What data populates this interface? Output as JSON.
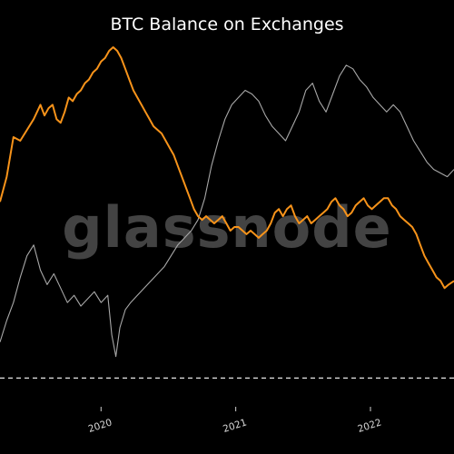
{
  "chart_data": {
    "type": "line",
    "title": "BTC Balance on Exchanges",
    "watermark": "glassnode",
    "xlabel": "",
    "ylabel": "",
    "x_ticks": [
      "2020",
      "2021",
      "2022"
    ],
    "x_range": [
      2019.25,
      2022.62
    ],
    "y_range": [
      0,
      100
    ],
    "grid": false,
    "legend": "none",
    "reference_line": {
      "value": 8,
      "style": "dashed",
      "color": "#ffffff"
    },
    "series": [
      {
        "color": "#f7931a",
        "points": [
          [
            2019.25,
            57
          ],
          [
            2019.3,
            64
          ],
          [
            2019.35,
            75
          ],
          [
            2019.4,
            74
          ],
          [
            2019.45,
            77
          ],
          [
            2019.5,
            80
          ],
          [
            2019.55,
            84
          ],
          [
            2019.58,
            81
          ],
          [
            2019.61,
            83
          ],
          [
            2019.64,
            84
          ],
          [
            2019.67,
            80
          ],
          [
            2019.7,
            79
          ],
          [
            2019.73,
            82
          ],
          [
            2019.76,
            86
          ],
          [
            2019.79,
            85
          ],
          [
            2019.82,
            87
          ],
          [
            2019.85,
            88
          ],
          [
            2019.88,
            90
          ],
          [
            2019.91,
            91
          ],
          [
            2019.94,
            93
          ],
          [
            2019.97,
            94
          ],
          [
            2020.0,
            96
          ],
          [
            2020.03,
            97
          ],
          [
            2020.06,
            99
          ],
          [
            2020.09,
            100
          ],
          [
            2020.12,
            99
          ],
          [
            2020.15,
            97
          ],
          [
            2020.18,
            94
          ],
          [
            2020.21,
            91
          ],
          [
            2020.24,
            88
          ],
          [
            2020.27,
            86
          ],
          [
            2020.3,
            84
          ],
          [
            2020.33,
            82
          ],
          [
            2020.36,
            80
          ],
          [
            2020.39,
            78
          ],
          [
            2020.42,
            77
          ],
          [
            2020.45,
            76
          ],
          [
            2020.48,
            74
          ],
          [
            2020.51,
            72
          ],
          [
            2020.54,
            70
          ],
          [
            2020.57,
            67
          ],
          [
            2020.6,
            64
          ],
          [
            2020.63,
            61
          ],
          [
            2020.66,
            58
          ],
          [
            2020.69,
            55
          ],
          [
            2020.72,
            53
          ],
          [
            2020.75,
            52
          ],
          [
            2020.78,
            53
          ],
          [
            2020.81,
            52
          ],
          [
            2020.84,
            51
          ],
          [
            2020.87,
            52
          ],
          [
            2020.9,
            53
          ],
          [
            2020.93,
            51
          ],
          [
            2020.96,
            49
          ],
          [
            2020.99,
            50
          ],
          [
            2021.02,
            50
          ],
          [
            2021.05,
            49
          ],
          [
            2021.08,
            48
          ],
          [
            2021.11,
            49
          ],
          [
            2021.14,
            48
          ],
          [
            2021.17,
            47
          ],
          [
            2021.2,
            48
          ],
          [
            2021.23,
            49
          ],
          [
            2021.26,
            51
          ],
          [
            2021.29,
            54
          ],
          [
            2021.32,
            55
          ],
          [
            2021.35,
            53
          ],
          [
            2021.38,
            55
          ],
          [
            2021.41,
            56
          ],
          [
            2021.44,
            53
          ],
          [
            2021.47,
            51
          ],
          [
            2021.5,
            52
          ],
          [
            2021.53,
            53
          ],
          [
            2021.56,
            51
          ],
          [
            2021.59,
            52
          ],
          [
            2021.62,
            53
          ],
          [
            2021.65,
            54
          ],
          [
            2021.68,
            55
          ],
          [
            2021.71,
            57
          ],
          [
            2021.74,
            58
          ],
          [
            2021.77,
            56
          ],
          [
            2021.8,
            55
          ],
          [
            2021.83,
            53
          ],
          [
            2021.86,
            54
          ],
          [
            2021.89,
            56
          ],
          [
            2021.92,
            57
          ],
          [
            2021.95,
            58
          ],
          [
            2021.98,
            56
          ],
          [
            2022.01,
            55
          ],
          [
            2022.04,
            56
          ],
          [
            2022.07,
            57
          ],
          [
            2022.1,
            58
          ],
          [
            2022.13,
            58
          ],
          [
            2022.16,
            56
          ],
          [
            2022.19,
            55
          ],
          [
            2022.22,
            53
          ],
          [
            2022.25,
            52
          ],
          [
            2022.28,
            51
          ],
          [
            2022.31,
            50
          ],
          [
            2022.34,
            48
          ],
          [
            2022.37,
            45
          ],
          [
            2022.4,
            42
          ],
          [
            2022.43,
            40
          ],
          [
            2022.46,
            38
          ],
          [
            2022.49,
            36
          ],
          [
            2022.52,
            35
          ],
          [
            2022.55,
            33
          ],
          [
            2022.58,
            34
          ],
          [
            2022.62,
            35
          ]
        ]
      },
      {
        "color": "#a8a8a8",
        "points": [
          [
            2019.25,
            18
          ],
          [
            2019.3,
            24
          ],
          [
            2019.35,
            29
          ],
          [
            2019.4,
            36
          ],
          [
            2019.45,
            42
          ],
          [
            2019.5,
            45
          ],
          [
            2019.55,
            38
          ],
          [
            2019.6,
            34
          ],
          [
            2019.65,
            37
          ],
          [
            2019.7,
            33
          ],
          [
            2019.75,
            29
          ],
          [
            2019.8,
            31
          ],
          [
            2019.85,
            28
          ],
          [
            2019.9,
            30
          ],
          [
            2019.95,
            32
          ],
          [
            2020.0,
            29
          ],
          [
            2020.05,
            31
          ],
          [
            2020.08,
            20
          ],
          [
            2020.11,
            14
          ],
          [
            2020.14,
            22
          ],
          [
            2020.18,
            27
          ],
          [
            2020.22,
            29
          ],
          [
            2020.27,
            31
          ],
          [
            2020.32,
            33
          ],
          [
            2020.37,
            35
          ],
          [
            2020.42,
            37
          ],
          [
            2020.47,
            39
          ],
          [
            2020.52,
            42
          ],
          [
            2020.57,
            45
          ],
          [
            2020.62,
            47
          ],
          [
            2020.67,
            49
          ],
          [
            2020.72,
            52
          ],
          [
            2020.77,
            58
          ],
          [
            2020.82,
            67
          ],
          [
            2020.87,
            74
          ],
          [
            2020.92,
            80
          ],
          [
            2020.97,
            84
          ],
          [
            2021.02,
            86
          ],
          [
            2021.07,
            88
          ],
          [
            2021.12,
            87
          ],
          [
            2021.17,
            85
          ],
          [
            2021.22,
            81
          ],
          [
            2021.27,
            78
          ],
          [
            2021.32,
            76
          ],
          [
            2021.37,
            74
          ],
          [
            2021.42,
            78
          ],
          [
            2021.47,
            82
          ],
          [
            2021.52,
            88
          ],
          [
            2021.57,
            90
          ],
          [
            2021.62,
            85
          ],
          [
            2021.67,
            82
          ],
          [
            2021.72,
            87
          ],
          [
            2021.77,
            92
          ],
          [
            2021.82,
            95
          ],
          [
            2021.87,
            94
          ],
          [
            2021.92,
            91
          ],
          [
            2021.97,
            89
          ],
          [
            2022.02,
            86
          ],
          [
            2022.07,
            84
          ],
          [
            2022.12,
            82
          ],
          [
            2022.17,
            84
          ],
          [
            2022.22,
            82
          ],
          [
            2022.27,
            78
          ],
          [
            2022.32,
            74
          ],
          [
            2022.37,
            71
          ],
          [
            2022.42,
            68
          ],
          [
            2022.47,
            66
          ],
          [
            2022.52,
            65
          ],
          [
            2022.57,
            64
          ],
          [
            2022.62,
            66
          ]
        ]
      }
    ]
  }
}
